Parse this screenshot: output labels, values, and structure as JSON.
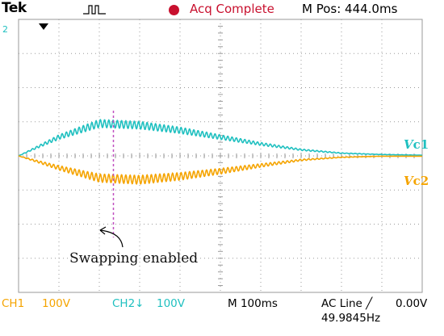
{
  "header": {
    "brand": "Tek",
    "acquisition_status": "Acq Complete",
    "m_pos": "M Pos: 444.0ms"
  },
  "markers": {
    "ch2_ref": "2",
    "trigger_pos": "T"
  },
  "footer": {
    "ch1_label": "CH1",
    "ch1_scale": "100V",
    "ch2_label": "CH2",
    "ch2_scale": "100V",
    "timebase": "M 100ms",
    "trigger_source": "AC Line",
    "trigger_level": "0.00V",
    "frequency": "49.9845Hz"
  },
  "annotations": {
    "vc1": {
      "var": "V",
      "sub": "c1"
    },
    "vc2": {
      "var": "V",
      "sub": "c2"
    },
    "swap": "Swapping enabled"
  },
  "colors": {
    "ch1": "#f5a400",
    "ch2": "#20c0c0",
    "grid": "#9a9a9a",
    "acq": "#c8102e",
    "marker": "#c050c0"
  },
  "chart_data": {
    "type": "line",
    "x_unit": "ms",
    "x_divisions": 10,
    "y_divisions": 8,
    "time_per_div_ms": 100,
    "volts_per_div": 100,
    "series": [
      {
        "name": "Vc1",
        "channel": "CH2",
        "envelope": [
          0,
          0.55,
          0.95,
          0.9,
          0.75,
          0.55,
          0.35,
          0.18,
          0.08,
          0.04,
          0.02
        ],
        "ripple": 0.12
      },
      {
        "name": "Vc2",
        "channel": "CH1",
        "envelope": [
          0,
          -0.35,
          -0.65,
          -0.7,
          -0.6,
          -0.45,
          -0.28,
          -0.12,
          -0.04,
          -0.01,
          -0.01
        ],
        "ripple": 0.18
      }
    ],
    "swap_marker_div": 2.35
  }
}
